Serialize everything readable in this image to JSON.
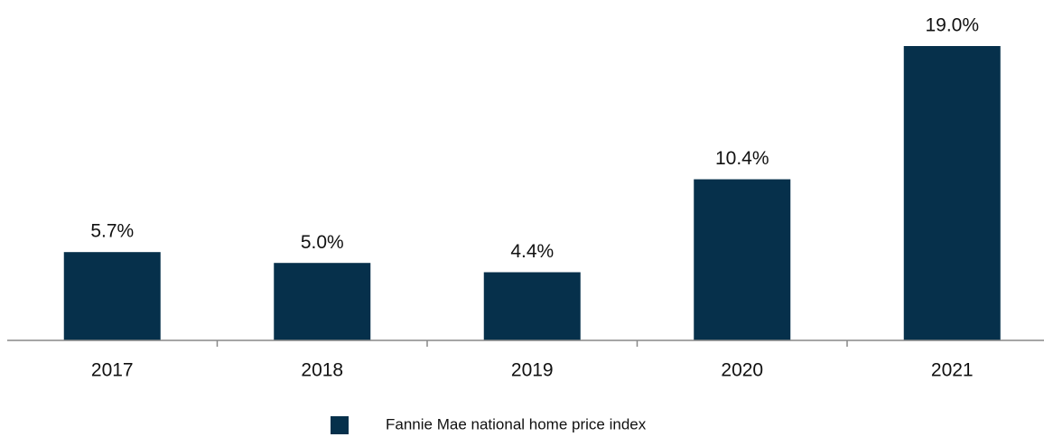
{
  "chart_data": {
    "type": "bar",
    "categories": [
      "2017",
      "2018",
      "2019",
      "2020",
      "2021"
    ],
    "series": [
      {
        "name": "Fannie Mae national home price index",
        "color": "#06304b",
        "values": [
          5.7,
          5.0,
          4.4,
          10.4,
          19.0
        ],
        "value_labels": [
          "5.7%",
          "5.0%",
          "4.4%",
          "10.4%",
          "19.0%"
        ]
      }
    ],
    "legend": "bottom"
  }
}
